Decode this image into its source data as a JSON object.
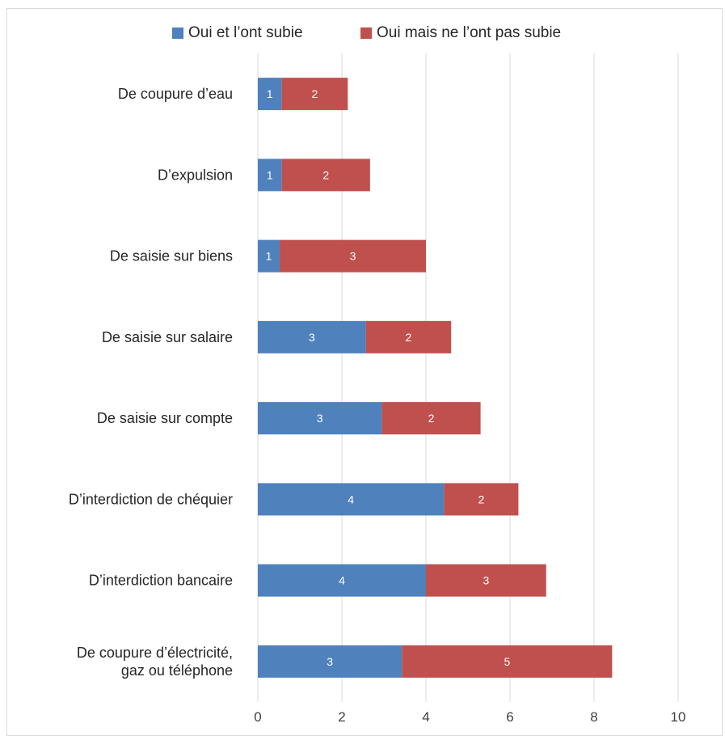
{
  "chart_data": {
    "type": "bar",
    "orientation": "horizontal",
    "stacked": true,
    "title": "",
    "xlabel": "",
    "ylabel": "",
    "xlim": [
      0,
      10
    ],
    "xticks": [
      0,
      2,
      4,
      6,
      8,
      10
    ],
    "grid": true,
    "legend_position": "top",
    "categories": [
      "De coupure d’eau",
      "D’expulsion",
      "De saisie sur biens",
      "De saisie sur salaire",
      "De saisie sur compte",
      "D’interdiction de chéquier",
      "D’interdiction bancaire",
      "De coupure d’électricité, gaz ou téléphone"
    ],
    "series": [
      {
        "name": "Oui et l’ont subie",
        "color": "#4f81bd",
        "values": [
          0.57,
          0.57,
          0.52,
          2.57,
          2.95,
          4.43,
          4.0,
          3.43
        ],
        "labels": [
          "1",
          "1",
          "1",
          "3",
          "3",
          "4",
          "4",
          "3"
        ]
      },
      {
        "name": "Oui mais ne l’ont pas subie",
        "color": "#c0504d",
        "values": [
          1.57,
          2.1,
          3.48,
          2.03,
          2.35,
          1.77,
          2.86,
          5.0
        ],
        "labels": [
          "2",
          "2",
          "3",
          "2",
          "2",
          "2",
          "3",
          "5"
        ]
      }
    ]
  }
}
